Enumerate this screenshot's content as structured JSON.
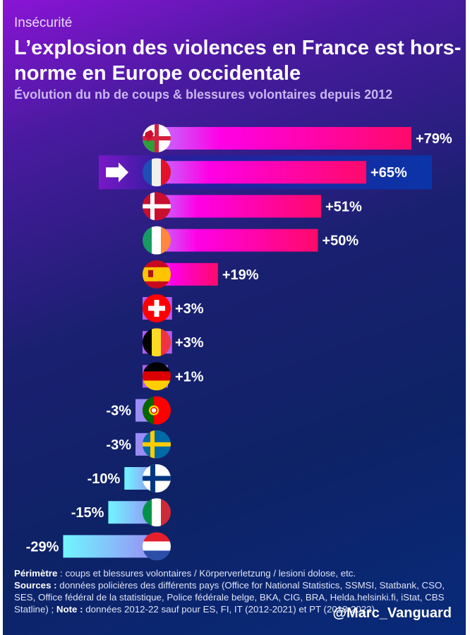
{
  "header": {
    "kicker": "Insécurité",
    "title": "L’explosion des violences en France est hors-norme en Europe occidentale",
    "subtitle": "Évolution du nb de coups & blessures volontaires depuis 2012"
  },
  "chart_data": {
    "type": "bar",
    "orientation": "horizontal",
    "title": "L’explosion des violences en France est hors-norme en Europe occidentale",
    "subtitle": "Évolution du nb de coups & blessures volontaires depuis 2012",
    "xlabel": "",
    "ylabel": "",
    "unit": "%",
    "xlim": [
      -29,
      79
    ],
    "grid": false,
    "highlighted": "France",
    "categories": [
      "Angleterre & Pays de Galles",
      "France",
      "Danemark",
      "Irlande",
      "Espagne",
      "Suisse",
      "Belgique",
      "Allemagne",
      "Portugal",
      "Suède",
      "Finlande",
      "Italie",
      "Pays-Bas"
    ],
    "flags": [
      "england-wales-flag",
      "france-flag",
      "denmark-flag",
      "ireland-flag",
      "spain-flag",
      "switzerland-flag",
      "belgium-flag",
      "germany-flag",
      "portugal-flag",
      "sweden-flag",
      "finland-flag",
      "italy-flag",
      "netherlands-flag"
    ],
    "values": [
      79,
      65,
      51,
      50,
      19,
      3,
      3,
      1,
      -3,
      -3,
      -10,
      -15,
      -29
    ],
    "labels": [
      "+79%",
      "+65%",
      "+51%",
      "+50%",
      "+19%",
      "+3%",
      "+3%",
      "+1%",
      "-3%",
      "-3%",
      "-10%",
      "-15%",
      "-29%"
    ],
    "colors": {
      "positive_start": "#b45cff",
      "positive_mid": "#ff00dd",
      "positive_end": "#ff0a6a",
      "negative_start": "#9a8cf5",
      "negative_end": "#6ff6ff",
      "highlight_band": "#0a2a9a",
      "highlight_band_left": "#7a18c8"
    }
  },
  "footer": {
    "perimetre_label": "Périmètre",
    "perimetre_text": " : coups et blessures volontaires / Körperverletzung / lesioni dolose, etc.",
    "sources_label": "Sources :",
    "sources_text": " données policières des différents pays (Office for National Statistics, SSMSI, Statbank, CSO, SES, Office fédéral de la statistique, Police fédérale belge, BKA, CIG, BRA, Helda.helsinki.fi, iStat, CBS Statline) ; ",
    "note_label": "Note :",
    "note_text": " données 2012-22 sauf pour ES, FI, IT (2012-2021) et PT (2013-2022)",
    "handle": "@Marc_Vanguard"
  }
}
